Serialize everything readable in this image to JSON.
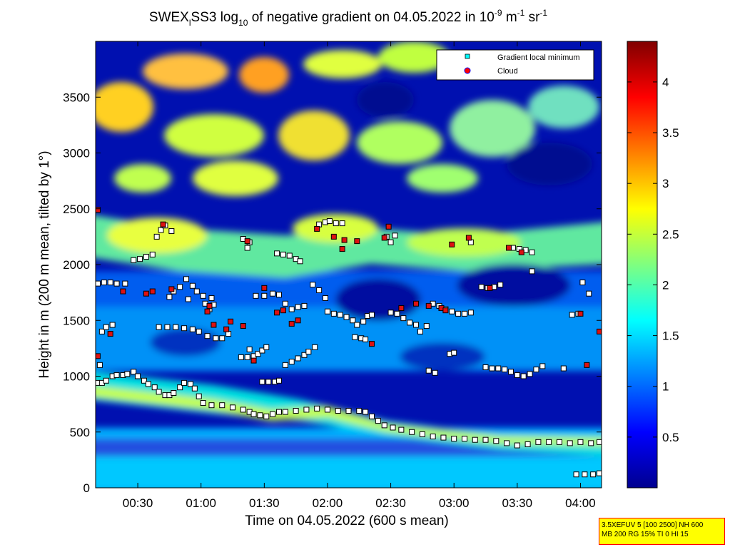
{
  "chart_data": {
    "type": "heatmap",
    "title_parts": {
      "a": "SWEX",
      "sub1": "l",
      "b": "SS3 log",
      "sub2": "10",
      "c": " of negative gradient on 04.05.2022 in 10",
      "sup1": "-9",
      "d": " m",
      "sup2": "-1",
      "e": " sr",
      "sup3": "-1"
    },
    "xlabel": "Time on 04.05.2022 (600 s mean)",
    "ylabel": "Height in m (200 m mean, tilted by 1°)",
    "xlim_minutes": [
      10,
      250
    ],
    "ylim": [
      0,
      4000
    ],
    "x_ticks": [
      {
        "label": "00:30",
        "min": 30
      },
      {
        "label": "01:00",
        "min": 60
      },
      {
        "label": "01:30",
        "min": 90
      },
      {
        "label": "02:00",
        "min": 120
      },
      {
        "label": "02:30",
        "min": 150
      },
      {
        "label": "03:00",
        "min": 180
      },
      {
        "label": "03:30",
        "min": 210
      },
      {
        "label": "04:00",
        "min": 240
      }
    ],
    "y_ticks": [
      0,
      500,
      1000,
      1500,
      2000,
      2500,
      3000,
      3500
    ],
    "colorbar": {
      "range": [
        0,
        4.4
      ],
      "ticks": [
        "0.5",
        "1",
        "1.5",
        "2",
        "2.5",
        "3",
        "3.5",
        "4"
      ]
    },
    "legend": {
      "position": "top-right",
      "entries": [
        {
          "label": "Gradient local minimum",
          "marker": "square",
          "color": "#00ffff"
        },
        {
          "label": "Cloud",
          "marker": "circle",
          "color": "#ff0000"
        }
      ]
    },
    "colors": {
      "low": "#00008f",
      "mid": "#00c8ff",
      "high": "#ffff00",
      "max": "#800000"
    },
    "series": [
      {
        "name": "Gradient local minimum",
        "marker": "square",
        "points": [
          [
            11,
            940
          ],
          [
            13,
            940
          ],
          [
            15,
            960
          ],
          [
            18,
            1000
          ],
          [
            20,
            1010
          ],
          [
            23,
            1010
          ],
          [
            25,
            1020
          ],
          [
            28,
            1040
          ],
          [
            30,
            1000
          ],
          [
            33,
            960
          ],
          [
            35,
            930
          ],
          [
            38,
            900
          ],
          [
            40,
            860
          ],
          [
            43,
            830
          ],
          [
            45,
            830
          ],
          [
            47,
            850
          ],
          [
            50,
            900
          ],
          [
            52,
            940
          ],
          [
            55,
            930
          ],
          [
            57,
            890
          ],
          [
            59,
            820
          ],
          [
            61,
            760
          ],
          [
            65,
            740
          ],
          [
            70,
            740
          ],
          [
            75,
            720
          ],
          [
            80,
            700
          ],
          [
            83,
            680
          ],
          [
            85,
            660
          ],
          [
            88,
            650
          ],
          [
            91,
            640
          ],
          [
            94,
            660
          ],
          [
            97,
            680
          ],
          [
            100,
            680
          ],
          [
            105,
            690
          ],
          [
            110,
            700
          ],
          [
            115,
            710
          ],
          [
            120,
            700
          ],
          [
            125,
            690
          ],
          [
            130,
            690
          ],
          [
            135,
            690
          ],
          [
            138,
            680
          ],
          [
            141,
            640
          ],
          [
            144,
            600
          ],
          [
            147,
            560
          ],
          [
            151,
            540
          ],
          [
            155,
            520
          ],
          [
            160,
            500
          ],
          [
            165,
            480
          ],
          [
            170,
            460
          ],
          [
            175,
            450
          ],
          [
            180,
            440
          ],
          [
            185,
            440
          ],
          [
            190,
            430
          ],
          [
            195,
            430
          ],
          [
            200,
            420
          ],
          [
            205,
            400
          ],
          [
            210,
            380
          ],
          [
            215,
            390
          ],
          [
            220,
            410
          ],
          [
            225,
            410
          ],
          [
            230,
            410
          ],
          [
            235,
            400
          ],
          [
            240,
            410
          ],
          [
            245,
            400
          ],
          [
            249,
            410
          ],
          [
            238,
            120
          ],
          [
            242,
            120
          ],
          [
            246,
            120
          ],
          [
            249,
            130
          ],
          [
            11,
            1830
          ],
          [
            14,
            1840
          ],
          [
            17,
            1840
          ],
          [
            20,
            1830
          ],
          [
            24,
            1830
          ],
          [
            28,
            2040
          ],
          [
            31,
            2050
          ],
          [
            34,
            2070
          ],
          [
            37,
            2090
          ],
          [
            39,
            2250
          ],
          [
            41,
            2310
          ],
          [
            43,
            2350
          ],
          [
            46,
            2300
          ],
          [
            45,
            1710
          ],
          [
            47,
            1760
          ],
          [
            50,
            1800
          ],
          [
            53,
            1870
          ],
          [
            56,
            1810
          ],
          [
            58,
            1760
          ],
          [
            61,
            1720
          ],
          [
            54,
            1690
          ],
          [
            40,
            1440
          ],
          [
            44,
            1440
          ],
          [
            48,
            1440
          ],
          [
            52,
            1430
          ],
          [
            56,
            1420
          ],
          [
            59,
            1400
          ],
          [
            63,
            1360
          ],
          [
            67,
            1340
          ],
          [
            70,
            1340
          ],
          [
            73,
            1380
          ],
          [
            12,
            1100
          ],
          [
            13,
            1400
          ],
          [
            15,
            1440
          ],
          [
            18,
            1460
          ],
          [
            62,
            1650
          ],
          [
            64,
            1600
          ],
          [
            66,
            1640
          ],
          [
            65,
            1700
          ],
          [
            79,
            1170
          ],
          [
            82,
            1170
          ],
          [
            85,
            1180
          ],
          [
            87,
            1200
          ],
          [
            89,
            1230
          ],
          [
            91,
            1260
          ],
          [
            83,
            1240
          ],
          [
            80,
            2230
          ],
          [
            83,
            2200
          ],
          [
            82,
            2150
          ],
          [
            86,
            1720
          ],
          [
            90,
            1720
          ],
          [
            94,
            1740
          ],
          [
            97,
            1730
          ],
          [
            100,
            1650
          ],
          [
            103,
            1600
          ],
          [
            106,
            1620
          ],
          [
            109,
            1630
          ],
          [
            89,
            950
          ],
          [
            92,
            950
          ],
          [
            95,
            950
          ],
          [
            97,
            960
          ],
          [
            96,
            2100
          ],
          [
            99,
            2090
          ],
          [
            102,
            2080
          ],
          [
            105,
            2050
          ],
          [
            107,
            2030
          ],
          [
            100,
            1100
          ],
          [
            103,
            1130
          ],
          [
            106,
            1160
          ],
          [
            109,
            1190
          ],
          [
            111,
            1220
          ],
          [
            114,
            1260
          ],
          [
            113,
            1820
          ],
          [
            116,
            1770
          ],
          [
            119,
            1700
          ],
          [
            116,
            2360
          ],
          [
            119,
            2380
          ],
          [
            121,
            2390
          ],
          [
            124,
            2370
          ],
          [
            127,
            2370
          ],
          [
            120,
            1580
          ],
          [
            123,
            1560
          ],
          [
            126,
            1550
          ],
          [
            129,
            1530
          ],
          [
            132,
            1500
          ],
          [
            134,
            1460
          ],
          [
            137,
            1490
          ],
          [
            139,
            1540
          ],
          [
            141,
            1550
          ],
          [
            133,
            1350
          ],
          [
            136,
            1340
          ],
          [
            138,
            1330
          ],
          [
            148,
            2250
          ],
          [
            150,
            2200
          ],
          [
            152,
            2260
          ],
          [
            150,
            1570
          ],
          [
            153,
            1560
          ],
          [
            156,
            1520
          ],
          [
            159,
            1480
          ],
          [
            162,
            1460
          ],
          [
            164,
            1400
          ],
          [
            167,
            1450
          ],
          [
            168,
            1050
          ],
          [
            171,
            1030
          ],
          [
            170,
            1650
          ],
          [
            173,
            1630
          ],
          [
            176,
            1600
          ],
          [
            179,
            1580
          ],
          [
            182,
            1560
          ],
          [
            185,
            1560
          ],
          [
            188,
            1570
          ],
          [
            178,
            1200
          ],
          [
            180,
            1210
          ],
          [
            188,
            2200
          ],
          [
            193,
            1800
          ],
          [
            196,
            1790
          ],
          [
            199,
            1800
          ],
          [
            202,
            1820
          ],
          [
            195,
            1080
          ],
          [
            198,
            1070
          ],
          [
            201,
            1070
          ],
          [
            204,
            1060
          ],
          [
            207,
            1040
          ],
          [
            210,
            1010
          ],
          [
            213,
            1000
          ],
          [
            216,
            1020
          ],
          [
            219,
            1060
          ],
          [
            222,
            1090
          ],
          [
            208,
            2150
          ],
          [
            211,
            2140
          ],
          [
            214,
            2130
          ],
          [
            217,
            2110
          ],
          [
            217,
            1940
          ],
          [
            232,
            1070
          ],
          [
            236,
            1550
          ],
          [
            239,
            1560
          ],
          [
            241,
            1840
          ],
          [
            244,
            1740
          ]
        ]
      },
      {
        "name": "Cloud",
        "marker": "circle",
        "points": [
          [
            11,
            2490
          ],
          [
            11,
            1180
          ],
          [
            17,
            1380
          ],
          [
            23,
            1760
          ],
          [
            34,
            1740
          ],
          [
            37,
            1760
          ],
          [
            42,
            2360
          ],
          [
            46,
            1780
          ],
          [
            63,
            1580
          ],
          [
            64,
            1630
          ],
          [
            66,
            1460
          ],
          [
            72,
            1420
          ],
          [
            74,
            1490
          ],
          [
            80,
            1450
          ],
          [
            82,
            2210
          ],
          [
            85,
            1140
          ],
          [
            90,
            1790
          ],
          [
            96,
            1570
          ],
          [
            99,
            1590
          ],
          [
            103,
            1470
          ],
          [
            106,
            1500
          ],
          [
            115,
            2320
          ],
          [
            123,
            2250
          ],
          [
            127,
            2140
          ],
          [
            128,
            2220
          ],
          [
            134,
            2210
          ],
          [
            141,
            1290
          ],
          [
            147,
            2240
          ],
          [
            149,
            2340
          ],
          [
            155,
            1610
          ],
          [
            162,
            1650
          ],
          [
            168,
            1630
          ],
          [
            174,
            1610
          ],
          [
            176,
            1590
          ],
          [
            179,
            2180
          ],
          [
            187,
            2240
          ],
          [
            197,
            1790
          ],
          [
            206,
            2150
          ],
          [
            212,
            2110
          ],
          [
            240,
            1560
          ],
          [
            243,
            1100
          ],
          [
            249,
            1400
          ]
        ]
      }
    ]
  },
  "info_box": {
    "line1": "3.5XEFUV 5 [100 2500] NH 600",
    "line2": "MB 200 RG 15% TI 0 HI 15"
  }
}
